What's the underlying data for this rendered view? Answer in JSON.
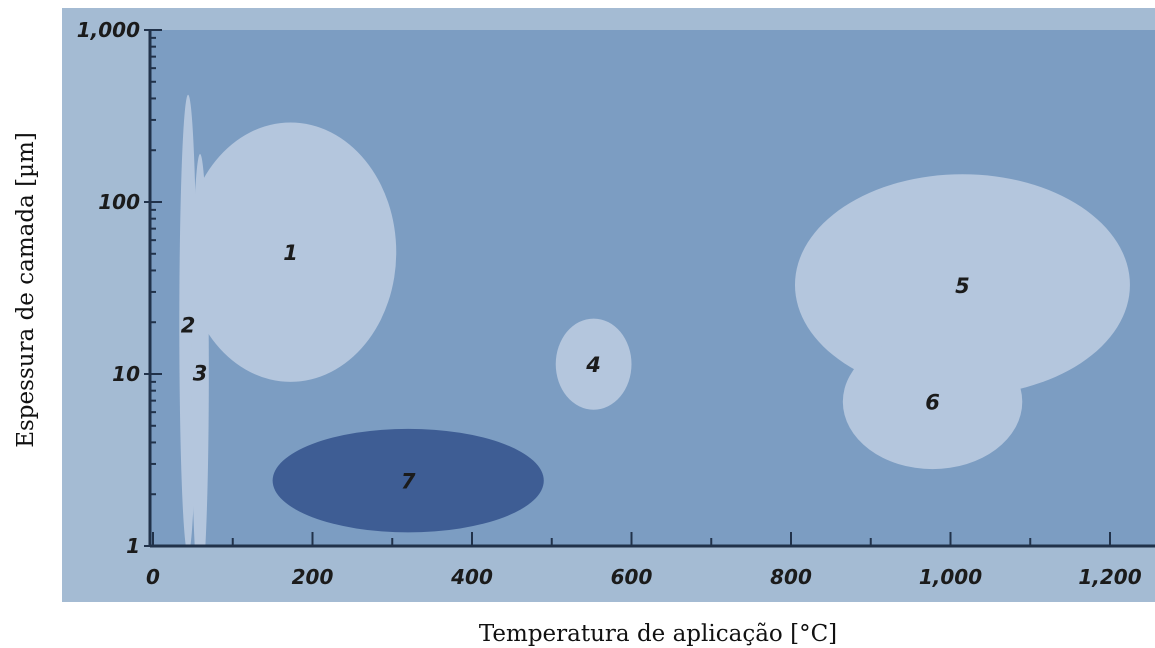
{
  "chart_data": {
    "type": "ellipse-region",
    "title": "",
    "xlabel": "Temperatura de aplicação [°C]",
    "ylabel": "Espessura de camada [µm]",
    "x_scale": "linear",
    "y_scale": "log",
    "xlim": [
      0,
      1250
    ],
    "ylim": [
      1,
      1000
    ],
    "x_ticks": [
      {
        "value": 0,
        "label": "0"
      },
      {
        "value": 200,
        "label": "200"
      },
      {
        "value": 400,
        "label": "400"
      },
      {
        "value": 600,
        "label": "600"
      },
      {
        "value": 800,
        "label": "800"
      },
      {
        "value": 1000,
        "label": "1,000"
      },
      {
        "value": 1200,
        "label": "1,200"
      }
    ],
    "y_ticks": [
      {
        "value": 1,
        "label": "1"
      },
      {
        "value": 10,
        "label": "10"
      },
      {
        "value": 100,
        "label": "100"
      },
      {
        "value": 1000,
        "label": "1,000"
      }
    ],
    "grid": false,
    "regions": [
      {
        "label": "1",
        "x_range": [
          40,
          305
        ],
        "y_range": [
          9,
          290
        ],
        "color": "#b4c6dd"
      },
      {
        "label": "2",
        "x_range": [
          33,
          55
        ],
        "y_range": [
          0.9,
          420
        ],
        "color": "#b4c6dd"
      },
      {
        "label": "3",
        "x_range": [
          48,
          70
        ],
        "y_range": [
          0.55,
          190
        ],
        "color": "#b4c6dd"
      },
      {
        "label": "4",
        "x_range": [
          505,
          600
        ],
        "y_range": [
          6.2,
          21
        ],
        "color": "#b4c6dd"
      },
      {
        "label": "5",
        "x_range": [
          805,
          1225
        ],
        "y_range": [
          7.5,
          145
        ],
        "color": "#b4c6dd"
      },
      {
        "label": "6",
        "x_range": [
          865,
          1090
        ],
        "y_range": [
          2.8,
          17
        ],
        "color": "#b4c6dd"
      },
      {
        "label": "7",
        "x_range": [
          150,
          490
        ],
        "y_range": [
          1.2,
          4.8
        ],
        "color": "#3e5d94"
      }
    ],
    "colors": {
      "frame": "#a4bbd3",
      "plot_area": "#7c9dc2",
      "axis": "#21324a"
    }
  }
}
